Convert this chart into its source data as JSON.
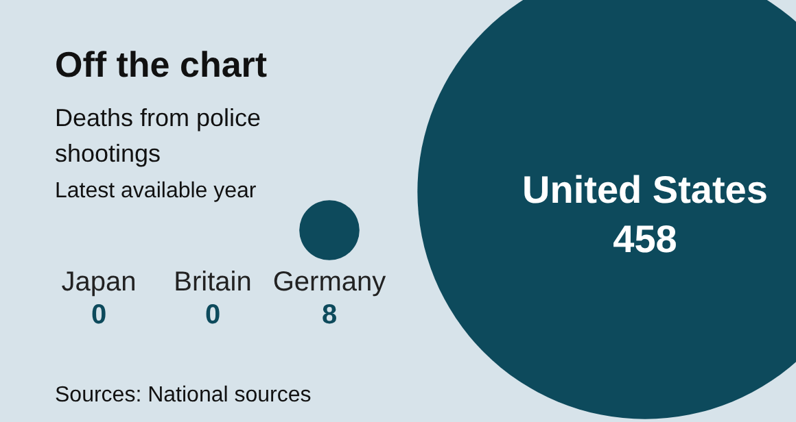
{
  "chart_data": {
    "type": "other",
    "title": "Off the chart",
    "subtitle": "Deaths from police shootings\nLatest available year",
    "categories": [
      "Japan",
      "Britain",
      "Germany",
      "United States"
    ],
    "values": [
      0,
      0,
      8,
      458
    ],
    "color": "#0d4a5c",
    "data_labels": true,
    "annotations": [
      "Sources: National sources"
    ]
  }
}
